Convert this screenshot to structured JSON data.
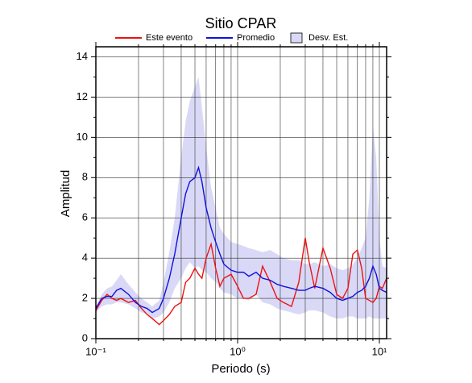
{
  "chart_data": {
    "type": "line",
    "title": "Sitio CPAR",
    "x_label": "Periodo (s)",
    "y_label": "Amplitud",
    "xscale": "log",
    "xlim": [
      0.1,
      11.25
    ],
    "ylim": [
      0,
      14.5
    ],
    "xticks": [
      {
        "value": 0.1,
        "label": "10⁻¹"
      },
      {
        "value": 1,
        "label": "10⁰"
      },
      {
        "value": 10,
        "label": "10¹"
      }
    ],
    "x_minor_ticks": [
      0.2,
      0.3,
      0.4,
      0.5,
      0.6,
      0.7,
      0.8,
      0.9,
      2,
      3,
      4,
      5,
      6,
      7,
      8,
      9
    ],
    "yticks": [
      0,
      2,
      4,
      6,
      8,
      10,
      12,
      14
    ],
    "y_minor_ticks": [
      1,
      3,
      5,
      7,
      9,
      11,
      13
    ],
    "grid": true,
    "x": [
      0.1,
      0.11,
      0.12,
      0.13,
      0.14,
      0.15,
      0.17,
      0.19,
      0.21,
      0.23,
      0.25,
      0.28,
      0.3,
      0.33,
      0.36,
      0.4,
      0.43,
      0.46,
      0.5,
      0.53,
      0.56,
      0.6,
      0.65,
      0.7,
      0.75,
      0.8,
      0.9,
      1.0,
      1.1,
      1.2,
      1.35,
      1.5,
      1.7,
      1.9,
      2.1,
      2.4,
      2.7,
      3.0,
      3.2,
      3.5,
      4.0,
      4.5,
      5.0,
      5.5,
      6.0,
      6.5,
      7.0,
      7.5,
      8.0,
      8.5,
      9.0,
      9.5,
      10,
      10.5,
      11.25
    ],
    "series": [
      {
        "name": "Este evento",
        "color": "#ee1111",
        "values": [
          1.4,
          1.9,
          2.2,
          2.0,
          1.9,
          2.0,
          1.8,
          1.9,
          1.5,
          1.2,
          1.0,
          0.7,
          0.9,
          1.2,
          1.6,
          1.8,
          2.8,
          3.0,
          3.5,
          3.2,
          3.0,
          4.0,
          4.7,
          3.5,
          2.6,
          3.0,
          3.2,
          2.6,
          2.0,
          2.0,
          2.2,
          3.6,
          2.8,
          2.0,
          1.8,
          1.6,
          2.8,
          5.0,
          3.8,
          2.5,
          4.5,
          3.5,
          2.2,
          2.0,
          2.5,
          4.2,
          4.4,
          3.5,
          2.0,
          1.9,
          1.8,
          2.0,
          2.6,
          2.5,
          3.0
        ]
      },
      {
        "name": "Promedio",
        "color": "#1111dd",
        "values": [
          1.5,
          2.0,
          2.1,
          2.1,
          2.4,
          2.5,
          2.2,
          1.8,
          1.6,
          1.5,
          1.3,
          1.5,
          2.0,
          3.0,
          4.2,
          6.0,
          7.2,
          7.8,
          8.0,
          8.5,
          7.8,
          6.5,
          5.5,
          4.8,
          4.2,
          3.7,
          3.4,
          3.3,
          3.3,
          3.1,
          3.3,
          3.0,
          2.9,
          2.7,
          2.6,
          2.5,
          2.4,
          2.4,
          2.5,
          2.6,
          2.5,
          2.3,
          2.0,
          1.9,
          2.0,
          2.1,
          2.3,
          2.4,
          2.6,
          3.0,
          3.6,
          3.2,
          2.5,
          2.4,
          2.3
        ]
      },
      {
        "name": "Desv. Est.",
        "type": "band",
        "color": "#d9d9f7",
        "upper": [
          1.6,
          2.2,
          2.5,
          2.6,
          2.9,
          3.2,
          2.7,
          2.3,
          2.0,
          1.8,
          1.6,
          1.9,
          2.8,
          4.3,
          6.0,
          9.0,
          10.8,
          11.8,
          12.5,
          13.0,
          11.5,
          9.5,
          7.5,
          6.5,
          5.5,
          5.2,
          4.8,
          4.7,
          4.6,
          4.5,
          4.4,
          4.3,
          4.4,
          4.2,
          4.0,
          3.9,
          3.9,
          3.7,
          3.7,
          3.8,
          3.6,
          3.7,
          3.5,
          3.4,
          3.5,
          3.7,
          4.0,
          4.5,
          5.0,
          7.0,
          10.5,
          9.0,
          5.0,
          3.6,
          3.5
        ],
        "lower": [
          1.3,
          1.6,
          1.7,
          1.7,
          1.8,
          1.8,
          1.7,
          1.5,
          1.3,
          1.2,
          1.0,
          1.1,
          1.3,
          1.8,
          2.5,
          3.0,
          3.5,
          3.8,
          3.5,
          3.6,
          3.4,
          3.3,
          3.0,
          2.8,
          2.5,
          2.3,
          2.2,
          2.0,
          2.0,
          1.9,
          2.2,
          1.8,
          1.7,
          1.5,
          1.4,
          1.3,
          1.2,
          1.3,
          1.4,
          1.4,
          1.3,
          1.1,
          1.0,
          1.0,
          1.1,
          1.1,
          1.0,
          1.0,
          1.0,
          1.1,
          1.0,
          1.0,
          1.0,
          1.0,
          1.0
        ]
      }
    ]
  }
}
